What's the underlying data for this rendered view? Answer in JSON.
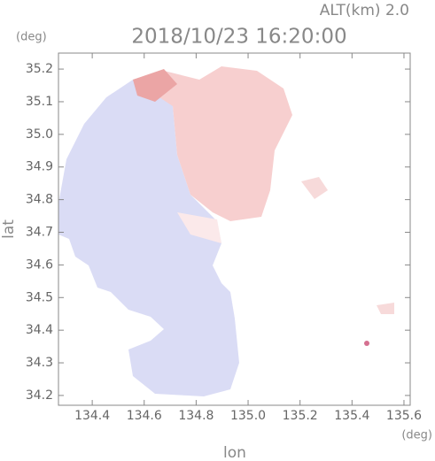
{
  "chart_data": {
    "type": "map",
    "title": "2018/10/23 16:20:00",
    "subtitle": "ALT(km) 2.0",
    "y_unit": "(deg)",
    "x_unit": "(deg)",
    "x_label": "lon",
    "y_label": "lat",
    "xlim": [
      134.27,
      135.624
    ],
    "ylim": [
      34.17,
      35.249
    ],
    "xticks": [
      134.4,
      134.6,
      134.8,
      {
        "value": 135.0,
        "label": "135.0"
      },
      135.2,
      135.4,
      135.6
    ],
    "yticks": [
      34.2,
      34.3,
      34.4,
      34.5,
      34.6,
      34.7,
      34.8,
      34.9,
      {
        "value": 35.0,
        "label": "35.0"
      },
      35.1,
      35.2
    ]
  }
}
